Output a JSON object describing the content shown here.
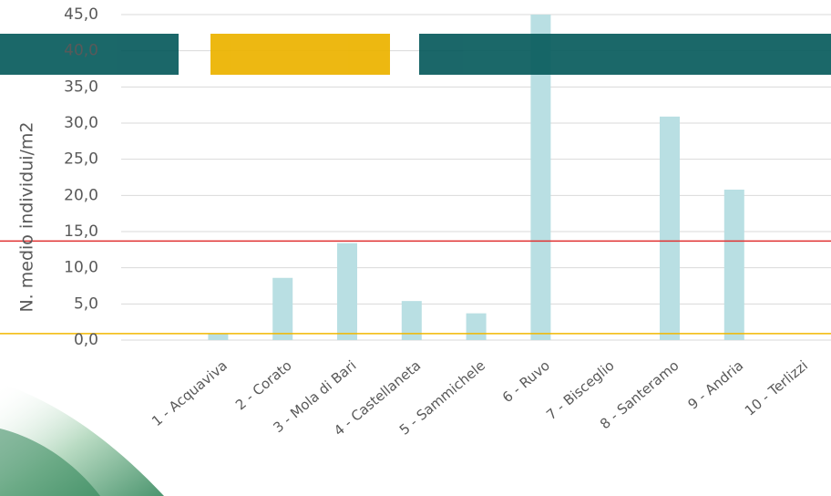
{
  "chart_data": {
    "type": "bar",
    "y_label": "N. medio individui/m2",
    "categories": [
      "1 - Acquaviva",
      "2 - Corato",
      "3 - Mola di Bari",
      "4 - Castellaneta",
      "5 - Sammichele",
      "6 - Ruvo",
      "7 - Bisceglio",
      "8 - Santeramo",
      "9 - Andria",
      "10 - Terlizzi"
    ],
    "values": [
      0.9,
      8.6,
      13.4,
      5.4,
      3.7,
      45,
      0,
      30.9,
      20.8,
      0
    ],
    "color": "#b9dfe3",
    "ylim": [
      0,
      45
    ],
    "yticks": [
      {
        "value": 0,
        "label": "0,0"
      },
      {
        "value": 5,
        "label": "5,0"
      },
      {
        "value": 10,
        "label": "10,0"
      },
      {
        "value": 15,
        "label": "15,0"
      },
      {
        "value": 20,
        "label": "20,0"
      },
      {
        "value": 25,
        "label": "25,0"
      },
      {
        "value": 30,
        "label": "30,0"
      },
      {
        "value": 35,
        "label": "35,0"
      },
      {
        "value": 40,
        "label": "40,0"
      },
      {
        "value": 45,
        "label": "45,0"
      }
    ],
    "grid": true,
    "reference_lines": [
      {
        "value": 13.7,
        "color": "#e03030"
      },
      {
        "value": 0.9,
        "color": "#f2b800"
      }
    ]
  }
}
